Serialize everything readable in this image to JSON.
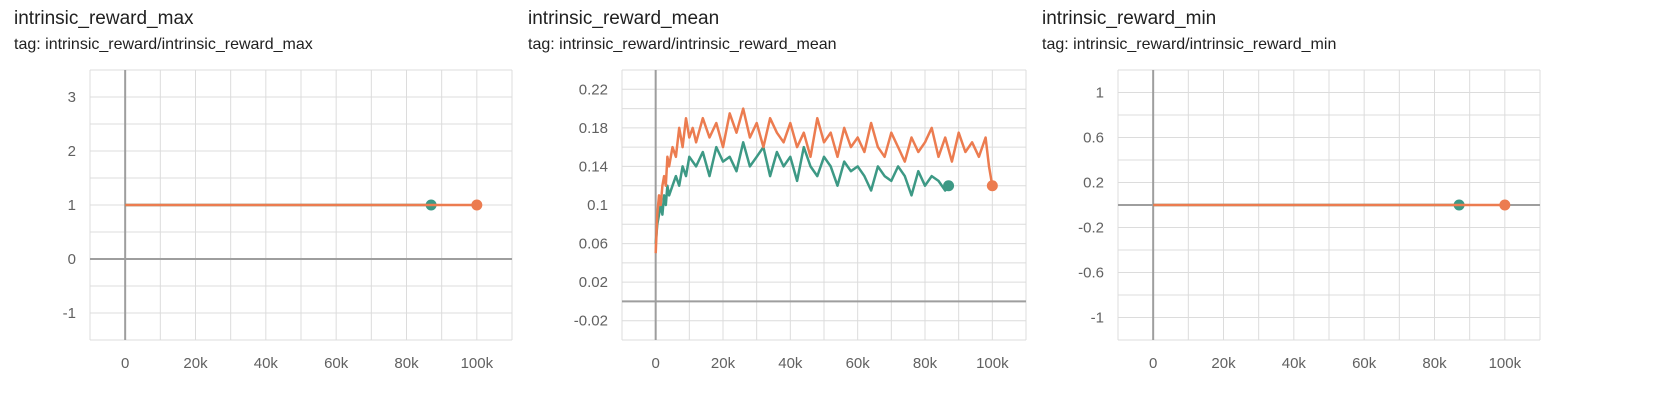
{
  "colors": {
    "series_a": "#ec7c50",
    "series_b": "#3d9985",
    "grid": "#dcdcdc",
    "axis": "#9e9e9e"
  },
  "cards": [
    {
      "title": "intrinsic_reward_max",
      "tag": "tag: intrinsic_reward/intrinsic_reward_max"
    },
    {
      "title": "intrinsic_reward_mean",
      "tag": "tag: intrinsic_reward/intrinsic_reward_mean"
    },
    {
      "title": "intrinsic_reward_min",
      "tag": "tag: intrinsic_reward/intrinsic_reward_min"
    }
  ],
  "chart_data": [
    {
      "type": "line",
      "title": "intrinsic_reward_max",
      "xlim": [
        -10000,
        110000
      ],
      "ylim": [
        -1.5,
        3.5
      ],
      "x_ticks": [
        0,
        20000,
        40000,
        60000,
        80000,
        100000
      ],
      "x_tick_labels": [
        "0",
        "20k",
        "40k",
        "60k",
        "80k",
        "100k"
      ],
      "y_ticks": [
        -1,
        0,
        1,
        2,
        3
      ],
      "y_tick_labels": [
        "-1",
        "0",
        "1",
        "2",
        "3"
      ],
      "grid": true,
      "series": [
        {
          "color": "#3d9985",
          "x": [
            0,
            87000
          ],
          "values": [
            1,
            1
          ],
          "end_marker": true
        },
        {
          "color": "#ec7c50",
          "x": [
            0,
            100000
          ],
          "values": [
            1,
            1
          ],
          "end_marker": true
        }
      ]
    },
    {
      "type": "line",
      "title": "intrinsic_reward_mean",
      "xlim": [
        -10000,
        110000
      ],
      "ylim": [
        -0.04,
        0.24
      ],
      "x_ticks": [
        0,
        20000,
        40000,
        60000,
        80000,
        100000
      ],
      "x_tick_labels": [
        "0",
        "20k",
        "40k",
        "60k",
        "80k",
        "100k"
      ],
      "y_ticks": [
        -0.02,
        0.02,
        0.06,
        0.1,
        0.14,
        0.18,
        0.22
      ],
      "y_tick_labels": [
        "-0.02",
        "0.02",
        "0.06",
        "0.1",
        "0.14",
        "0.18",
        "0.22"
      ],
      "grid": true,
      "series": [
        {
          "color": "#3d9985",
          "x": [
            0,
            500,
            1000,
            1500,
            2000,
            2500,
            3000,
            3500,
            4000,
            5000,
            6000,
            7000,
            8000,
            9000,
            10000,
            12000,
            14000,
            16000,
            18000,
            20000,
            22000,
            24000,
            26000,
            28000,
            30000,
            32000,
            34000,
            36000,
            38000,
            40000,
            42000,
            44000,
            46000,
            48000,
            50000,
            52000,
            54000,
            56000,
            58000,
            60000,
            62000,
            64000,
            66000,
            68000,
            70000,
            72000,
            74000,
            76000,
            78000,
            80000,
            82000,
            84000,
            86000,
            87000
          ],
          "values": [
            0.06,
            0.08,
            0.09,
            0.1,
            0.09,
            0.11,
            0.1,
            0.12,
            0.11,
            0.12,
            0.13,
            0.12,
            0.14,
            0.13,
            0.15,
            0.14,
            0.155,
            0.13,
            0.16,
            0.145,
            0.15,
            0.135,
            0.165,
            0.14,
            0.15,
            0.16,
            0.13,
            0.155,
            0.14,
            0.15,
            0.125,
            0.16,
            0.14,
            0.13,
            0.15,
            0.14,
            0.12,
            0.145,
            0.135,
            0.14,
            0.13,
            0.115,
            0.14,
            0.13,
            0.125,
            0.14,
            0.13,
            0.11,
            0.135,
            0.12,
            0.13,
            0.125,
            0.115,
            0.12
          ],
          "end_marker": true
        },
        {
          "color": "#ec7c50",
          "x": [
            0,
            500,
            1000,
            1500,
            2000,
            2500,
            3000,
            3500,
            4000,
            5000,
            6000,
            7000,
            8000,
            9000,
            10000,
            11000,
            12000,
            14000,
            16000,
            18000,
            20000,
            22000,
            24000,
            26000,
            28000,
            30000,
            32000,
            34000,
            36000,
            38000,
            40000,
            42000,
            44000,
            46000,
            48000,
            50000,
            52000,
            54000,
            56000,
            58000,
            60000,
            62000,
            64000,
            66000,
            68000,
            70000,
            72000,
            74000,
            76000,
            78000,
            80000,
            82000,
            84000,
            86000,
            88000,
            90000,
            92000,
            94000,
            96000,
            98000,
            99000,
            100000
          ],
          "values": [
            0.05,
            0.09,
            0.11,
            0.1,
            0.12,
            0.13,
            0.12,
            0.15,
            0.14,
            0.16,
            0.15,
            0.18,
            0.16,
            0.19,
            0.17,
            0.18,
            0.165,
            0.19,
            0.17,
            0.185,
            0.16,
            0.195,
            0.175,
            0.2,
            0.17,
            0.185,
            0.16,
            0.19,
            0.175,
            0.165,
            0.185,
            0.16,
            0.175,
            0.15,
            0.19,
            0.165,
            0.175,
            0.15,
            0.18,
            0.16,
            0.17,
            0.155,
            0.185,
            0.16,
            0.15,
            0.175,
            0.16,
            0.145,
            0.17,
            0.155,
            0.165,
            0.18,
            0.15,
            0.17,
            0.145,
            0.175,
            0.155,
            0.165,
            0.15,
            0.17,
            0.14,
            0.12
          ],
          "end_marker": true
        }
      ]
    },
    {
      "type": "line",
      "title": "intrinsic_reward_min",
      "xlim": [
        -10000,
        110000
      ],
      "ylim": [
        -1.2,
        1.2
      ],
      "x_ticks": [
        0,
        20000,
        40000,
        60000,
        80000,
        100000
      ],
      "x_tick_labels": [
        "0",
        "20k",
        "40k",
        "60k",
        "80k",
        "100k"
      ],
      "y_ticks": [
        -1,
        -0.6,
        -0.2,
        0.2,
        0.6,
        1
      ],
      "y_tick_labels": [
        "-1",
        "-0.6",
        "-0.2",
        "0.2",
        "0.6",
        "1"
      ],
      "grid": true,
      "series": [
        {
          "color": "#3d9985",
          "x": [
            0,
            87000
          ],
          "values": [
            0,
            0
          ],
          "end_marker": true
        },
        {
          "color": "#ec7c50",
          "x": [
            0,
            100000
          ],
          "values": [
            0,
            0
          ],
          "end_marker": true
        }
      ]
    }
  ]
}
